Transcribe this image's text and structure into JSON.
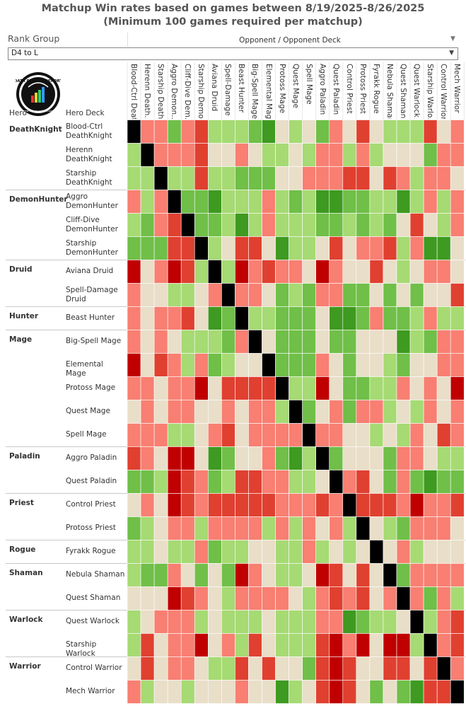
{
  "title_line1": "Matchup Win rates based on games between 8/19/2025-8/26/2025",
  "title_line2": "(Minimum 100 games required per matchup)",
  "rank_group_label": "Rank Group",
  "rank_group_value": "D4 to L",
  "opponent_header": "Opponent / Opponent Deck",
  "row_headers": {
    "hero": "Hero",
    "deck": "Hero Deck"
  },
  "logo": {
    "text": "DATA REAPER REPORT",
    "subtext": "www.vicioussyndicate.com"
  },
  "colors": {
    "L": "#c00000",
    "N": "#e04030",
    "P": "#f87f72",
    "T": "#e9dec8",
    "G": "#a6da73",
    "M": "#70bf48",
    "D": "#3e9a20",
    "X": "#000000"
  },
  "chart_data": {
    "type": "heatmap",
    "title": "Matchup Win rates based on games between 8/19/2025-8/26/2025",
    "subtitle": "(Minimum 100 games required per matchup)",
    "x_axis_label": "Opponent / Opponent Deck",
    "columns": [
      "Blood-Ctrl Death...",
      "Herenn Death...",
      "Starship Death...",
      "Aggro Demon...",
      "Cliff-Dive Dem...",
      "Starship Demo...",
      "Aviana Druid",
      "Spell-Damage ...",
      "Beast Hunter",
      "Big-Spell Mage",
      "Elemental Mage",
      "Protoss Mage",
      "Quest Mage",
      "Spell Mage",
      "Aggro Paladin",
      "Quest Paladin",
      "Control Priest",
      "Protoss Priest",
      "Fyrakk Rogue",
      "Nebula Shaman",
      "Quest Shaman",
      "Quest Warlock",
      "Starship Warlo...",
      "Control Warrior",
      "Mech Warrior"
    ],
    "color_scale_legend": "X = mirror, L/N/P = unfavored (dark to light), T = even, G/M/D = favored (light to dark)",
    "groups": [
      {
        "hero": "DeathKnight",
        "rows": [
          {
            "deck": "Blood-Ctrl DeathKnight",
            "cells": "XPPMPNGGGMDTGTMPTNTGGGNTP"
          },
          {
            "deck": "Herenn DeathKnight",
            "cells": "GXPPPNTTPTGGTGPPGPGTTTMPP"
          },
          {
            "deck": "Starship DeathKnight",
            "cells": "GGXGGNGGMMMTTPPPNNTNPGPPT"
          }
        ]
      },
      {
        "hero": "DemonHunter",
        "rows": [
          {
            "deck": "Aggro DemonHunter",
            "cells": "PGPXMMDGGGPGMGDDMMGGDGPGP"
          },
          {
            "deck": "Cliff-Dive DemonHunter",
            "cells": "GMPNXMMGDGPGGGMMGMGMTNTGP"
          },
          {
            "deck": "Starship DemonHunter",
            "cells": "MMMNNXGTNNTDGGTNTPPNGPDDT"
          }
        ]
      },
      {
        "hero": "Druid",
        "rows": [
          {
            "deck": "Aviana Druid",
            "cells": "LTPLNGXGLPNPPTLPTTNTGTPPT"
          },
          {
            "deck": "Spell-Damage Druid",
            "cells": "PTTGGTPXPPTMGMPPMMTMTMTTN"
          }
        ]
      },
      {
        "hero": "Hunter",
        "rows": [
          {
            "deck": "Beast Hunter",
            "cells": "PTPPNTDMXGGMMMTDDMPMMGPGG"
          }
        ]
      },
      {
        "hero": "Mage",
        "rows": [
          {
            "deck": "Big-Spell Mage",
            "cells": "PTPTGGGMPXTMMMTMMTTTDGMPP"
          },
          {
            "deck": "Elemental Mage",
            "cells": "LTNPGPMGTTXMMMPTMTTGMTTPP"
          },
          {
            "deck": "Protoss Mage",
            "cells": "PPTPPLTNNNNXGGLTMMGGPTPTL"
          },
          {
            "deck": "Quest Mage",
            "cells": "TPTPPTTPTPPGXMTPMPPGTGPTP"
          },
          {
            "deck": "Spell Mage",
            "cells": "PPPGGTPNTPPPPXPPTTGTGPTNP"
          }
        ]
      },
      {
        "hero": "Paladin",
        "rows": [
          {
            "deck": "Aggro Paladin",
            "cells": "NPTLLTDMTTPMDGXMTTTMPPTGG"
          },
          {
            "deck": "Quest Paladin",
            "cells": "MMGLNPMGNNPPGGTXPNTMPMDMM"
          }
        ]
      },
      {
        "hero": "Priest",
        "rows": [
          {
            "deck": "Control Priest",
            "cells": "TPTLNPNNNNNPPPNPXNNNPLPPN"
          },
          {
            "deck": "Protoss Priest",
            "cells": "MGTPPGPPPPGPGPTPGXTGMPPPT"
          }
        ]
      },
      {
        "hero": "Rogue",
        "rows": [
          {
            "deck": "Fyrakk Rogue",
            "cells": "GGTGGPMGGTTGGPGTGTXTPGTTT"
          }
        ]
      },
      {
        "hero": "Shaman",
        "rows": [
          {
            "deck": "Nebula Shaman",
            "cells": "GMMPTMTMLPTGGTLNTNTXMPPPP"
          },
          {
            "deck": "Quest Shaman",
            "cells": "TTTLNPTGPPPPTGPNPNTPXPMPG"
          }
        ]
      },
      {
        "hero": "Warlock",
        "rows": [
          {
            "deck": "Quest Warlock",
            "cells": "GTPPPGTGGGTGGGPPDMGGTXGPN"
          },
          {
            "deck": "Starship Warlock",
            "cells": "GNTPPLTPGNTGGGNLPLTLLGXPN"
          }
        ]
      },
      {
        "hero": "Warrior",
        "rows": [
          {
            "deck": "Control Warrior",
            "cells": "TNTPPTGGNTNTTMNLNTTNNTNXP"
          },
          {
            "deck": "Mech Warrior",
            "cells": "PGTTGTTTPTTDGTNLNTMTMDNNX"
          }
        ]
      }
    ]
  }
}
